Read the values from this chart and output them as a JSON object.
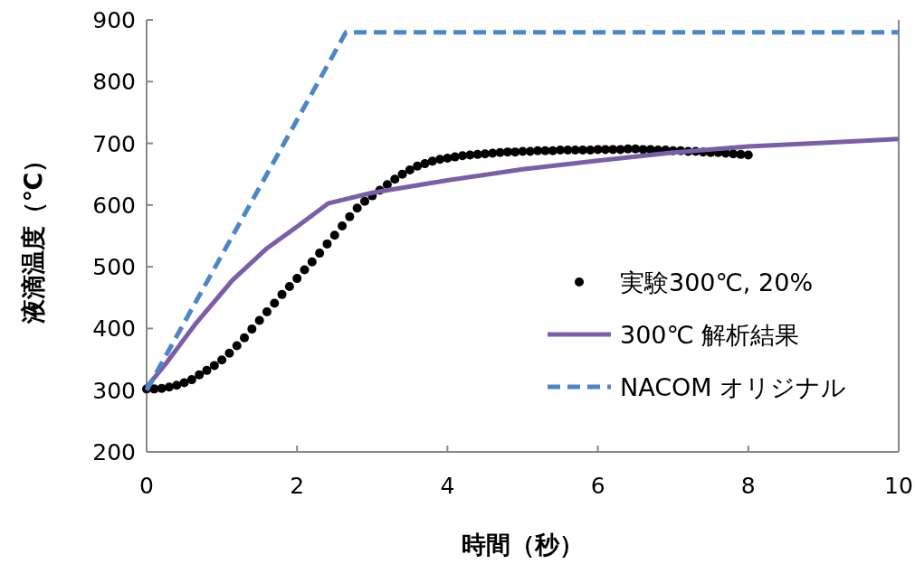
{
  "chart_data": {
    "type": "line",
    "xlabel": "時間（秒）",
    "ylabel": "液滴温度（℃）",
    "xlim": [
      0,
      10
    ],
    "ylim": [
      200,
      900
    ],
    "xticks": [
      0,
      2,
      4,
      6,
      8,
      10
    ],
    "yticks": [
      200,
      300,
      400,
      500,
      600,
      700,
      800,
      900
    ],
    "grid": false,
    "legend": "bottom right",
    "series": [
      {
        "name": "実験300℃, 20%",
        "type": "scatter",
        "marker": "circle",
        "color": "#000000",
        "x": [
          0,
          0.1,
          0.2,
          0.3,
          0.4,
          0.5,
          0.6,
          0.7,
          0.8,
          0.9,
          1.0,
          1.1,
          1.2,
          1.3,
          1.4,
          1.5,
          1.6,
          1.7,
          1.8,
          1.9,
          2.0,
          2.1,
          2.2,
          2.3,
          2.4,
          2.5,
          2.6,
          2.7,
          2.8,
          2.9,
          3.0,
          3.1,
          3.2,
          3.3,
          3.4,
          3.5,
          3.6,
          3.7,
          3.8,
          3.9,
          4.0,
          4.1,
          4.2,
          4.3,
          4.4,
          4.5,
          4.6,
          4.7,
          4.8,
          4.9,
          5.0,
          5.1,
          5.2,
          5.3,
          5.4,
          5.5,
          5.6,
          5.7,
          5.8,
          5.9,
          6.0,
          6.1,
          6.2,
          6.3,
          6.4,
          6.5,
          6.6,
          6.7,
          6.8,
          6.9,
          7.0,
          7.1,
          7.2,
          7.3,
          7.4,
          7.5,
          7.6,
          7.7,
          7.8,
          7.9,
          8.0
        ],
        "values": [
          302,
          302,
          303,
          305,
          308,
          312,
          317,
          325,
          332,
          340,
          349,
          360,
          372,
          385,
          399,
          413,
          427,
          441,
          455,
          468,
          481,
          495,
          508,
          522,
          537,
          551,
          566,
          581,
          595,
          606,
          615,
          624,
          633,
          642,
          650,
          657,
          663,
          667,
          671,
          674,
          676,
          678,
          680,
          681,
          682,
          683,
          684,
          685,
          686,
          686,
          687,
          687,
          688,
          688,
          688,
          689,
          689,
          689,
          689,
          689,
          690,
          690,
          690,
          690,
          691,
          691,
          690,
          690,
          689,
          689,
          688,
          688,
          687,
          687,
          686,
          685,
          685,
          684,
          683,
          682,
          681
        ]
      },
      {
        "name": "300℃ 解析結果",
        "type": "line",
        "line_style": "solid",
        "color": "#7b5ea7",
        "x": [
          0,
          0.25,
          0.66,
          1.14,
          1.6,
          2.0,
          2.42,
          3.0,
          4.0,
          5.0,
          6.0,
          7.0,
          8.0,
          9.0,
          10.0
        ],
        "values": [
          305,
          342,
          409,
          478,
          530,
          565,
          603,
          620,
          640,
          658,
          672,
          685,
          695,
          701,
          707
        ]
      },
      {
        "name": "NACOM オリジナル",
        "type": "line",
        "line_style": "dashed",
        "color": "#4a86c8",
        "x": [
          0,
          2.65,
          10
        ],
        "values": [
          300,
          880,
          880
        ]
      }
    ]
  }
}
